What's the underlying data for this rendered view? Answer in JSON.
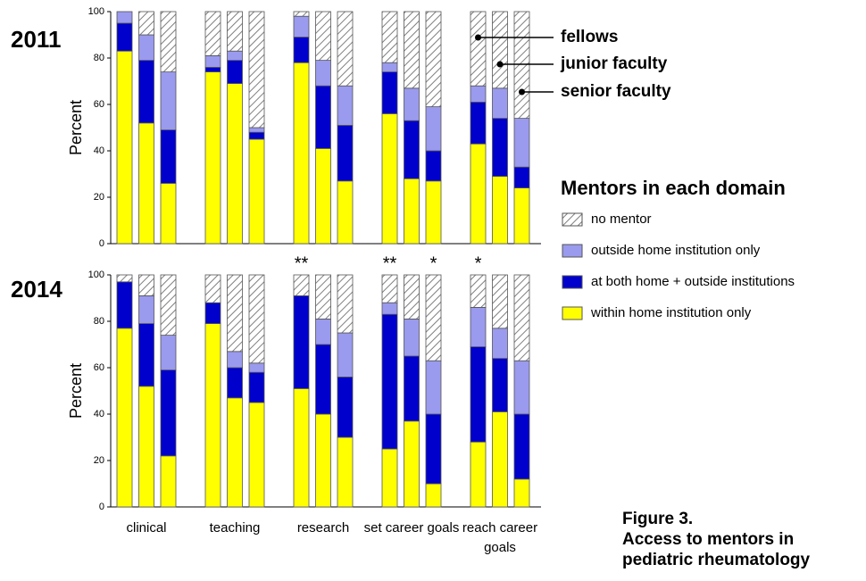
{
  "chart_data": [
    {
      "type": "bar",
      "stacked": true,
      "title": "2011",
      "ylabel": "Percent",
      "ylim": [
        0,
        100
      ],
      "yticks": [
        0,
        20,
        40,
        60,
        80,
        100
      ],
      "categories": [
        "clinical",
        "teaching",
        "research",
        "set career goals",
        "reach career goals"
      ],
      "subcategories": [
        "fellows",
        "junior faculty",
        "senior faculty"
      ],
      "legend_title": "Mentors in each domain",
      "series": [
        {
          "name": "within home institution only",
          "color": "#ffff00",
          "values": [
            [
              83,
              52,
              26
            ],
            [
              74,
              69,
              45
            ],
            [
              78,
              41,
              27
            ],
            [
              56,
              28,
              27
            ],
            [
              43,
              29,
              24
            ]
          ]
        },
        {
          "name": "at both home + outside institutions",
          "color": "#0000cc",
          "values": [
            [
              12,
              27,
              23
            ],
            [
              2,
              10,
              3
            ],
            [
              11,
              27,
              24
            ],
            [
              18,
              25,
              13
            ],
            [
              18,
              25,
              9
            ]
          ]
        },
        {
          "name": "outside home institution only",
          "color": "#9a9aee",
          "values": [
            [
              5,
              11,
              25
            ],
            [
              5,
              4,
              2
            ],
            [
              9,
              11,
              17
            ],
            [
              4,
              14,
              19
            ],
            [
              7,
              13,
              21
            ]
          ]
        },
        {
          "name": "no mentor",
          "color": "#7f7f7f",
          "hatched": true,
          "values": [
            [
              0,
              10,
              26
            ],
            [
              19,
              17,
              50
            ],
            [
              2,
              21,
              32
            ],
            [
              22,
              33,
              41
            ],
            [
              32,
              33,
              46
            ]
          ]
        }
      ]
    },
    {
      "type": "bar",
      "stacked": true,
      "title": "2014",
      "ylabel": "Percent",
      "ylim": [
        0,
        100
      ],
      "yticks": [
        0,
        20,
        40,
        60,
        80,
        100
      ],
      "categories": [
        "clinical",
        "teaching",
        "research",
        "set career goals",
        "reach career goals"
      ],
      "markers": [
        [
          null,
          null,
          null
        ],
        [
          null,
          null,
          null
        ],
        [
          "**",
          null,
          null
        ],
        [
          "**",
          null,
          "*"
        ],
        [
          "*",
          null,
          null
        ]
      ],
      "series": [
        {
          "color": "#ffff00",
          "values": [
            [
              77,
              52,
              22
            ],
            [
              79,
              47,
              45
            ],
            [
              51,
              40,
              30
            ],
            [
              25,
              37,
              10
            ],
            [
              28,
              41,
              12
            ]
          ]
        },
        {
          "color": "#0000cc",
          "values": [
            [
              20,
              27,
              37
            ],
            [
              9,
              13,
              13
            ],
            [
              40,
              30,
              26
            ],
            [
              58,
              28,
              30
            ],
            [
              41,
              23,
              28
            ]
          ]
        },
        {
          "color": "#9a9aee",
          "values": [
            [
              0,
              12,
              15
            ],
            [
              0,
              7,
              4
            ],
            [
              0,
              11,
              19
            ],
            [
              5,
              16,
              23
            ],
            [
              17,
              13,
              23
            ]
          ]
        },
        {
          "color": "#7f7f7f",
          "hatched": true,
          "values": [
            [
              3,
              9,
              26
            ],
            [
              12,
              33,
              38
            ],
            [
              9,
              19,
              25
            ],
            [
              12,
              19,
              37
            ],
            [
              14,
              23,
              37
            ]
          ]
        }
      ]
    }
  ],
  "caption": {
    "label": "Figure 3.",
    "lines": [
      "Access to mentors in",
      "pediatric rheumatology"
    ]
  }
}
